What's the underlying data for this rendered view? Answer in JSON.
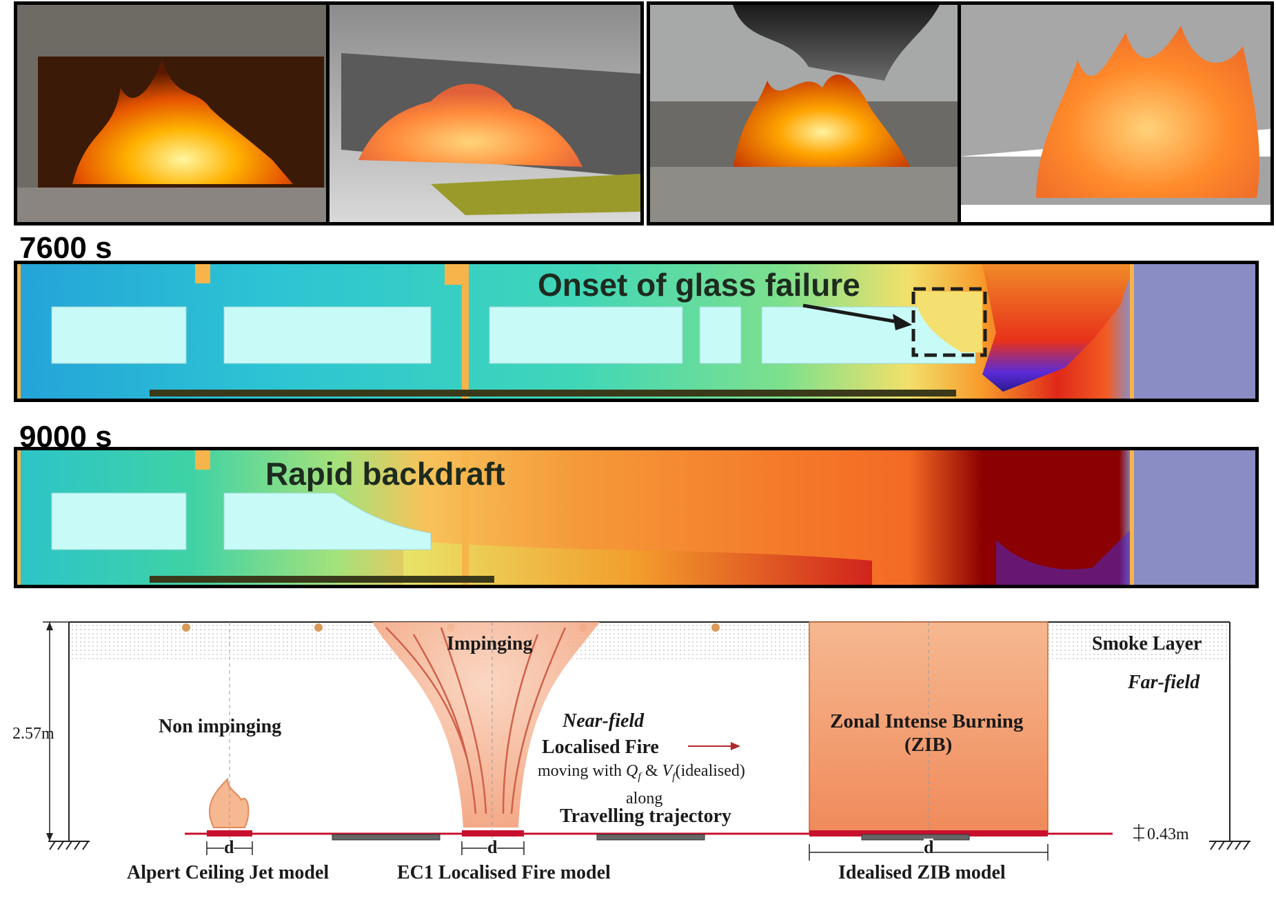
{
  "time_labels": [
    "7600 s",
    "9000 s"
  ],
  "annotations": {
    "glass": "Onset of glass failure",
    "backdraft": "Rapid backdraft"
  },
  "schematic": {
    "height_label": "2.57m",
    "offset_label": "0.43m",
    "smoke_layer": "Smoke Layer",
    "far_field": "Far-field",
    "near_field": "Near-field",
    "impinging": "Impinging",
    "non_impinging": "Non impinging",
    "localised_fire": "Localised Fire",
    "moving_prefix": "moving with",
    "q_symbol": "Q",
    "q_sub": "f",
    "amp": "&",
    "v_symbol": "V",
    "v_sub": "f",
    "moving_suffix": "(idealised)",
    "along": "along",
    "travelling": "Travelling trajectory",
    "zib_line1": "Zonal Intense Burning",
    "zib_line2": "(ZIB)",
    "d": "d",
    "model_alpert": "Alpert Ceiling Jet model",
    "model_ec1": "EC1 Localised Fire model",
    "model_zib": "Idealised ZIB model"
  },
  "colors": {
    "fire_red": "#c8102e",
    "zib_fill": "#f3a878",
    "plume_fill": "#f6bfa0",
    "cool_cyan": "#34d0c8",
    "hot_red": "#8b0000"
  }
}
